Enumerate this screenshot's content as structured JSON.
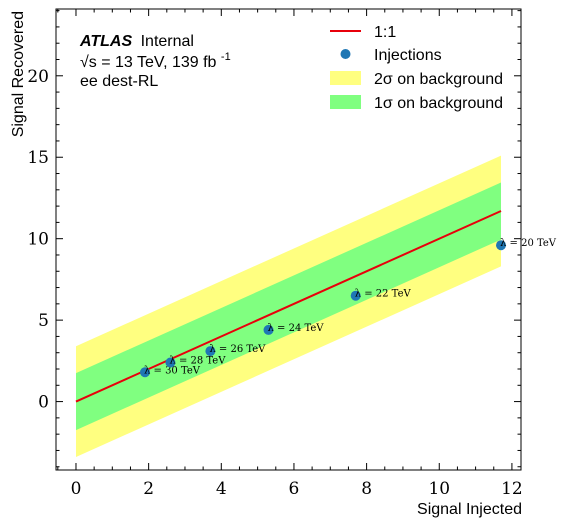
{
  "chart_data": {
    "type": "line",
    "xlabel": "Signal Injected",
    "ylabel": "Signal Recovered",
    "xlim": [
      -0.55,
      12.25
    ],
    "ylim": [
      -4.2,
      24.1
    ],
    "xticks": [
      0,
      2,
      4,
      6,
      8,
      10,
      12
    ],
    "yticks": [
      0,
      5,
      10,
      15,
      20
    ],
    "grid": false,
    "legend_placement": "top-right",
    "atlas_label": {
      "brand": "ATLAS",
      "status": "Internal",
      "energy_line": "√s = 13 TeV, 139 fb",
      "energy_sup": "-1",
      "channel": "ee dest-RL"
    },
    "legend": [
      {
        "label": "1:1",
        "kind": "line",
        "color": "#e8000b"
      },
      {
        "label": "Injections",
        "kind": "marker",
        "color": "#1f77b4"
      },
      {
        "label": "2σ on background",
        "kind": "band",
        "color": "#ffff80"
      },
      {
        "label": "1σ on background",
        "kind": "band",
        "color": "#80ff80"
      }
    ],
    "series": [
      {
        "name": "1:1",
        "x": [
          0,
          11.7
        ],
        "y": [
          0,
          11.7
        ],
        "color": "#e8000b"
      },
      {
        "name": "Injections",
        "x": [
          1.9,
          2.6,
          3.7,
          5.3,
          7.7,
          11.7
        ],
        "y": [
          1.8,
          2.4,
          3.1,
          4.4,
          6.5,
          9.6
        ],
        "labels": [
          "λ = 30 TeV",
          "λ = 28 TeV",
          "λ = 26 TeV",
          "λ = 24 TeV",
          "λ = 22 TeV",
          "λ = 20 TeV"
        ],
        "color": "#1f77b4"
      }
    ],
    "bands": [
      {
        "name": "2σ on background",
        "x": [
          0,
          11.7
        ],
        "half_width": 3.4,
        "color": "#ffff80"
      },
      {
        "name": "1σ on background",
        "x": [
          0,
          11.7
        ],
        "half_width": 1.75,
        "color": "#80ff80"
      }
    ]
  }
}
